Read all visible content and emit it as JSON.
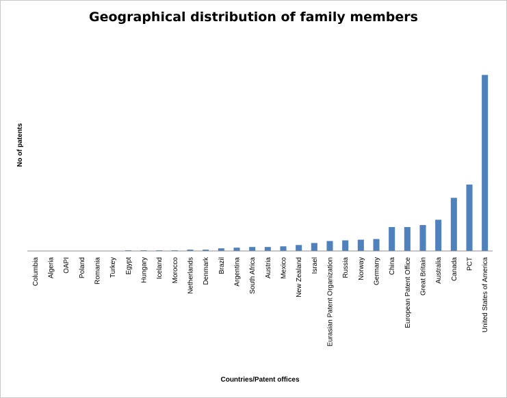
{
  "chart_data": {
    "type": "bar",
    "title": "Geographical distribution of family members",
    "xlabel": "Countries/Patent offices",
    "ylabel": "No of patents",
    "categories": [
      "Columbia",
      "Algeria",
      "OAPI",
      "Poland",
      "Romania",
      "Turkey",
      "Egypt",
      "Hungary",
      "Iceland",
      "Morocco",
      "Netherlands",
      "Denmark",
      "Brazil",
      "Argentina",
      "South Africa",
      "Austria",
      "Mexico",
      "New Zealand",
      "Israel",
      "Eurasian Patent Organization",
      "Russia",
      "Norway",
      "Germany",
      "China",
      "European Patent Office",
      "Great Britain",
      "Australia",
      "Canada",
      "PCT",
      "United States of America"
    ],
    "values": [
      0,
      0,
      0,
      0,
      0,
      0,
      1,
      1,
      1,
      1,
      2,
      2,
      4,
      5,
      6,
      6,
      7,
      9,
      12,
      15,
      16,
      17,
      18,
      36,
      36,
      39,
      47,
      80,
      100,
      265
    ],
    "ylim": [
      0,
      280
    ],
    "bar_color": "#4f81bd",
    "grid": false,
    "legend": "none"
  }
}
